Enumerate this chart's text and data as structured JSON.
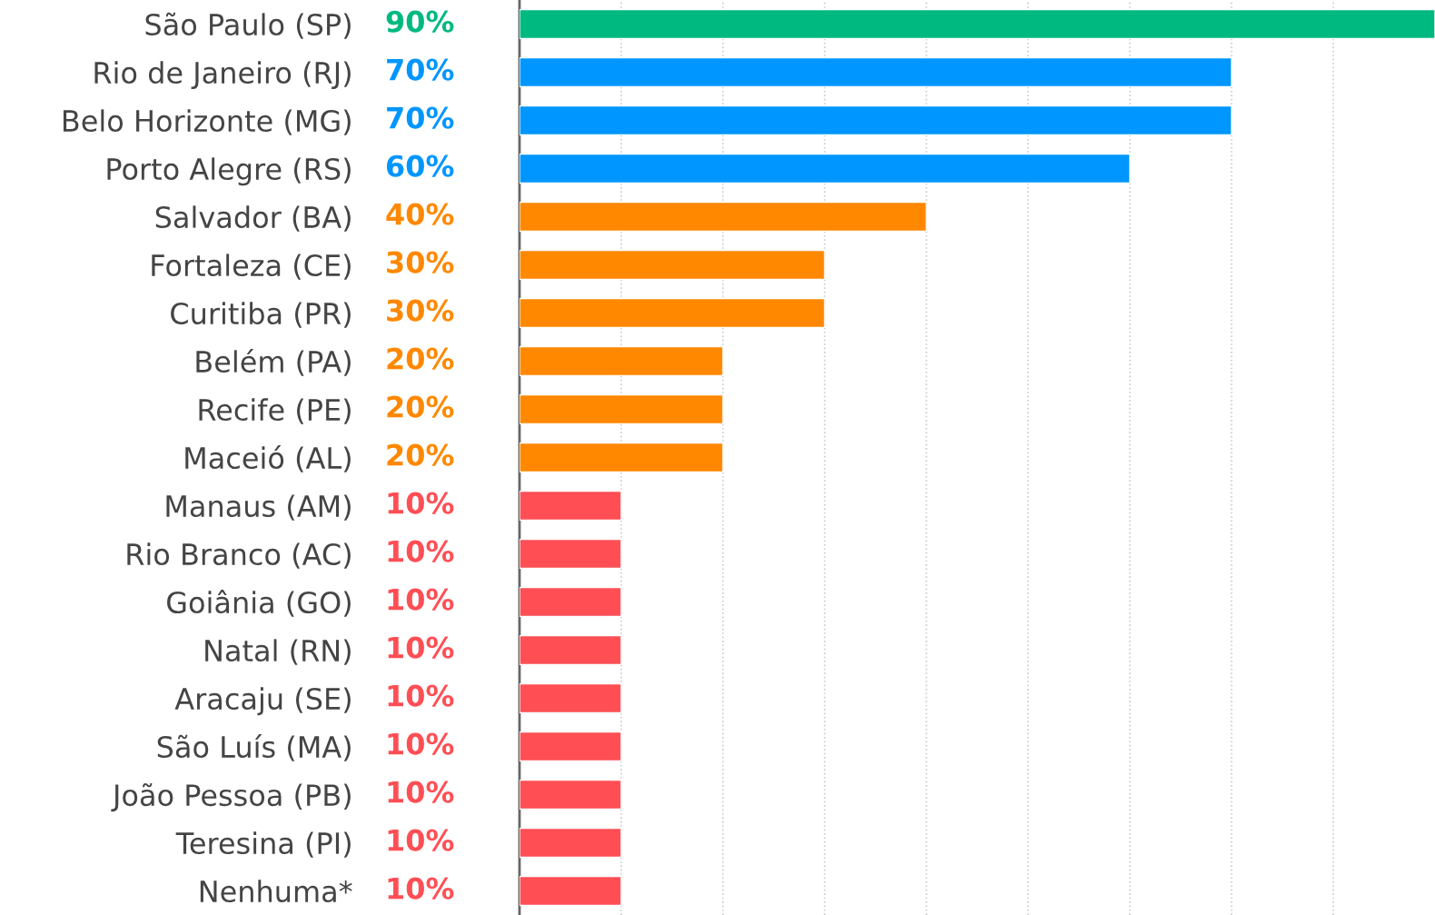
{
  "chart_data": {
    "type": "bar",
    "orientation": "horizontal",
    "categories": [
      "São Paulo (SP)",
      "Rio de Janeiro (RJ)",
      "Belo Horizonte (MG)",
      "Porto Alegre (RS)",
      "Salvador (BA)",
      "Fortaleza (CE)",
      "Curitiba (PR)",
      "Belém (PA)",
      "Recife (PE)",
      "Maceió (AL)",
      "Manaus (AM)",
      "Rio Branco (AC)",
      "Goiânia (GO)",
      "Natal (RN)",
      "Aracaju (SE)",
      "São Luís (MA)",
      "João Pessoa (PB)",
      "Teresina (PI)",
      "Nenhuma*"
    ],
    "values": [
      90,
      70,
      70,
      60,
      40,
      30,
      30,
      20,
      20,
      20,
      10,
      10,
      10,
      10,
      10,
      10,
      10,
      10,
      10
    ],
    "value_labels": [
      "90%",
      "70%",
      "70%",
      "60%",
      "40%",
      "30%",
      "30%",
      "20%",
      "20%",
      "20%",
      "10%",
      "10%",
      "10%",
      "10%",
      "10%",
      "10%",
      "10%",
      "10%",
      "10%"
    ],
    "colors": [
      "#00b980",
      "#0096ff",
      "#0096ff",
      "#0096ff",
      "#ff8800",
      "#ff8800",
      "#ff8800",
      "#ff8800",
      "#ff8800",
      "#ff8800",
      "#ff4f55",
      "#ff4f55",
      "#ff4f55",
      "#ff4f55",
      "#ff4f55",
      "#ff4f55",
      "#ff4f55",
      "#ff4f55",
      "#ff4f55"
    ],
    "xlim": [
      0,
      90
    ],
    "xticks": [
      {
        "value": 10,
        "label": null
      },
      {
        "value": 20,
        "label": null
      },
      {
        "value": 30,
        "label": null
      },
      {
        "value": 40,
        "label": null
      },
      {
        "value": 50,
        "label": null
      },
      {
        "value": 60,
        "label": null
      },
      {
        "value": 70,
        "label": null
      },
      {
        "value": 80,
        "label": null
      }
    ],
    "grid": "x",
    "tick_labels": "y"
  }
}
